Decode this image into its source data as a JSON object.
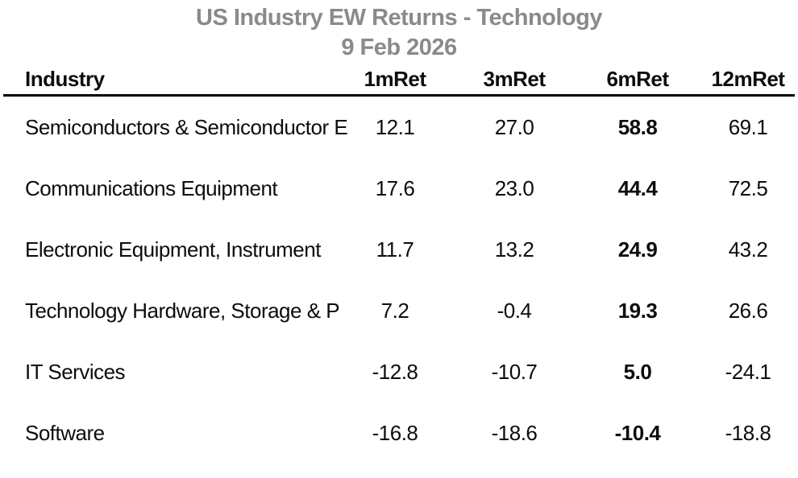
{
  "title": "US Industry EW Returns - Technology",
  "subtitle": "9 Feb 2026",
  "colors": {
    "title_text": "#8a8a8a",
    "body_text": "#0d0d0d",
    "rule": "#000000",
    "background": "#ffffff"
  },
  "chart_data": {
    "type": "table",
    "title": "US Industry EW Returns - Technology",
    "subtitle": "9 Feb 2026",
    "columns": [
      "Industry",
      "1mRet",
      "3mRet",
      "6mRet",
      "12mRet"
    ],
    "rows": [
      [
        "Semiconductors & Semiconductor E",
        "12.1",
        "27.0",
        "58.8",
        "69.1"
      ],
      [
        "Communications Equipment",
        "17.6",
        "23.0",
        "44.4",
        "72.5"
      ],
      [
        "Electronic Equipment, Instrument",
        "11.7",
        "13.2",
        "24.9",
        "43.2"
      ],
      [
        "Technology Hardware, Storage & P",
        "7.2",
        "-0.4",
        "19.3",
        "26.6"
      ],
      [
        "IT Services",
        "-12.8",
        "-10.7",
        "5.0",
        "-24.1"
      ],
      [
        "Software",
        "-16.8",
        "-18.6",
        "-10.4",
        "-18.8"
      ]
    ],
    "emphasis": {
      "column": "6mRet",
      "style": "bold"
    },
    "layout": {
      "grid": "off",
      "numeric_alignment": "center",
      "header_rule": "thick-black"
    }
  }
}
